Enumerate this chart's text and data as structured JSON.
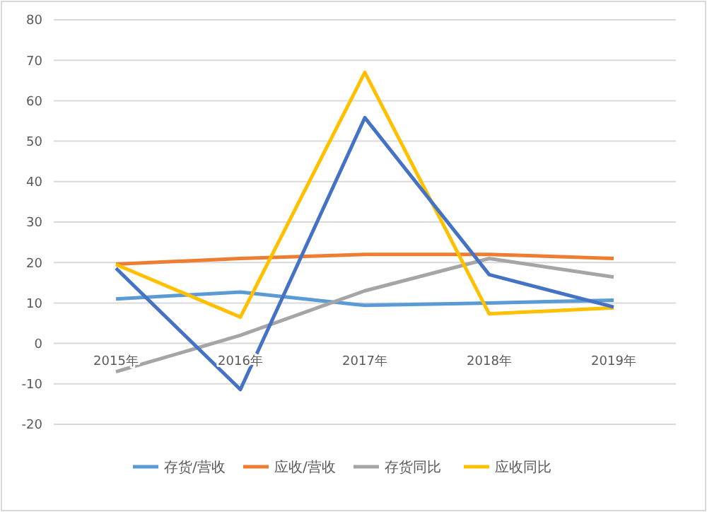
{
  "chart_data": {
    "type": "line",
    "categories": [
      "2015年",
      "2016年",
      "2017年",
      "2018年",
      "2019年"
    ],
    "series": [
      {
        "name": "存货/营收",
        "color": "#5b9bd5",
        "values": [
          11,
          12.7,
          9.4,
          10,
          10.7
        ]
      },
      {
        "name": "应收/营收",
        "color": "#ed7d31",
        "values": [
          19.6,
          21,
          22,
          22,
          21
        ]
      },
      {
        "name": "存货同比",
        "color": "#a5a5a5",
        "values": [
          -7,
          2,
          13,
          21,
          16.4
        ]
      },
      {
        "name": "应收同比",
        "color": "#ffc000",
        "values": [
          19.5,
          6.5,
          67,
          7.3,
          8.8
        ]
      },
      {
        "color": "#4472c4",
        "values": [
          18.6,
          -11.4,
          55.8,
          17,
          9
        ]
      }
    ],
    "ylim": [
      -20,
      80
    ],
    "yticks": [
      -20,
      -10,
      0,
      10,
      20,
      30,
      40,
      50,
      60,
      70,
      80
    ],
    "grid": "y",
    "legend": "bottom",
    "marker": "none",
    "line_style": "solid"
  }
}
